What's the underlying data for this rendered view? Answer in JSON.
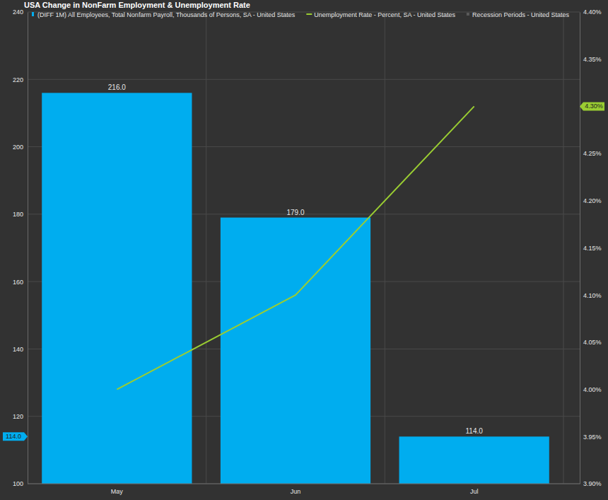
{
  "chart_data": {
    "type": "bar",
    "title": "USA Change in NonFarm Employment & Unemployment Rate",
    "categories": [
      "May",
      "Jun",
      "Jul"
    ],
    "series": [
      {
        "name": "(DIFF 1M) All Employees, Total Nonfarm Payroll, Thousands of Persons, SA - United States",
        "type": "bar",
        "color": "#00adef",
        "values": [
          216,
          179,
          114
        ],
        "value_labels": [
          "216.0",
          "179.0",
          "114.0"
        ],
        "data_labels": true
      },
      {
        "name": "Unemployment Rate - Percent, SA - United States",
        "type": "line",
        "axis": "y2",
        "color": "#9acd32",
        "values": [
          4.0,
          4.1,
          4.3
        ]
      },
      {
        "name": "Recession Periods - United States",
        "type": "area",
        "color": "#5a5a5a",
        "values": [
          null,
          null,
          null
        ]
      }
    ],
    "ylim": [
      100,
      240
    ],
    "yticks": [
      100,
      120,
      140,
      160,
      180,
      200,
      220,
      240
    ],
    "y2lim": [
      3.9,
      4.4
    ],
    "y2ticks": [
      {
        "value": 3.9,
        "label": "3.90%"
      },
      {
        "value": 3.95,
        "label": "3.95%"
      },
      {
        "value": 4.0,
        "label": "4.00%"
      },
      {
        "value": 4.05,
        "label": "4.05%"
      },
      {
        "value": 4.1,
        "label": "4.10%"
      },
      {
        "value": 4.15,
        "label": "4.15%"
      },
      {
        "value": 4.2,
        "label": "4.20%"
      },
      {
        "value": 4.25,
        "label": "4.25%"
      },
      {
        "value": 4.35,
        "label": "4.35%"
      },
      {
        "value": 4.4,
        "label": "4.40%"
      }
    ],
    "grid": true,
    "legend": "top",
    "annotations": [
      {
        "text": "114.0",
        "axis": "y",
        "value": 114,
        "color": "#00adef"
      },
      {
        "text": "4.30%",
        "axis": "y2",
        "value": 4.3,
        "color": "#9acd32"
      }
    ]
  }
}
